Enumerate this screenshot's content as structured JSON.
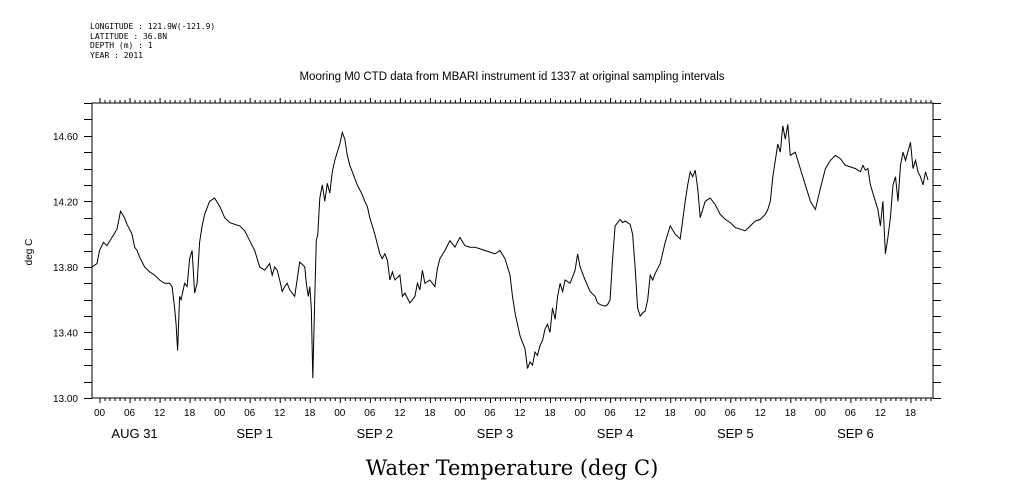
{
  "header": {
    "longitude": "LONGITUDE : 121.9W(-121.9)",
    "latitude": "LATITUDE : 36.8N",
    "depth": "DEPTH (m) : 1",
    "year": "YEAR : 2011"
  },
  "chart_data": {
    "type": "line",
    "title": "Mooring M0 CTD data from MBARI instrument id 1337 at original sampling intervals",
    "xlabel": "Water Temperature (deg C)",
    "ylabel": "deg C",
    "ylim": [
      13.0,
      14.8
    ],
    "yticks": [
      "13.00",
      "13.40",
      "13.80",
      "14.20",
      "14.60"
    ],
    "xlim_hours": [
      -1.5,
      166.5
    ],
    "hour_ticks": [
      "00",
      "06",
      "12",
      "18",
      "00",
      "06",
      "12",
      "18",
      "00",
      "06",
      "12",
      "18",
      "00",
      "06",
      "12",
      "18",
      "00",
      "06",
      "12",
      "18",
      "00",
      "06",
      "12",
      "18",
      "00",
      "06",
      "12",
      "18"
    ],
    "day_labels": [
      "AUG 31",
      "SEP  1",
      "SEP  2",
      "SEP  3",
      "SEP  4",
      "SEP  5",
      "SEP  6"
    ],
    "grid": false,
    "series": [
      {
        "x_hours": [
          -1.5,
          -0.5,
          0,
          0.8,
          1.5,
          2.5,
          3.5,
          4.2,
          5,
          5.5,
          6,
          6.5,
          7,
          7.5,
          8,
          9,
          10,
          11,
          12,
          13,
          14,
          14.5,
          15,
          15.3,
          15.6,
          16,
          16.3,
          17,
          17.5,
          18,
          18.5,
          19,
          19.5,
          20,
          20.5,
          21,
          22,
          23,
          24,
          25,
          26,
          27,
          28,
          29,
          30,
          31,
          32,
          33,
          34,
          34.5,
          35,
          35.5,
          36,
          36.5,
          37,
          37.5,
          38,
          39,
          40,
          41,
          41.3,
          41.7,
          42,
          42.3,
          42.6,
          43,
          43.3,
          43.6,
          44,
          44.5,
          45,
          45.5,
          46,
          46.5,
          47,
          47.5,
          48,
          48.5,
          49,
          49.5,
          50,
          50.5,
          51,
          51.5,
          52,
          52.5,
          53,
          53.5,
          54,
          55,
          56,
          56.5,
          57,
          57.5,
          58,
          58.5,
          59,
          60,
          60.5,
          61,
          62,
          63,
          63.5,
          64,
          64.5,
          65,
          66,
          67,
          67.5,
          68,
          69,
          70,
          71,
          72,
          73,
          74,
          75,
          76,
          77,
          78,
          79,
          80,
          81,
          82,
          82.5,
          83,
          84,
          85,
          85.5,
          86,
          86.5,
          87,
          87.5,
          88,
          88.5,
          89,
          89.5,
          90,
          90.5,
          91,
          91.5,
          92,
          92.5,
          93,
          94,
          95,
          95.5,
          96,
          96.5,
          97,
          98,
          99,
          99.5,
          100,
          101,
          101.5,
          102,
          102.5,
          103,
          104,
          104.5,
          105,
          106,
          106.5,
          107,
          107.5,
          108,
          108.5,
          109,
          109.5,
          110,
          110.5,
          111,
          112,
          113,
          114,
          115,
          116,
          117,
          117.5,
          118,
          118.5,
          119,
          119.5,
          120,
          121,
          122,
          123,
          124,
          125,
          126,
          127,
          128,
          129,
          130,
          131,
          132,
          133,
          133.5,
          134,
          134.5,
          135,
          135.5,
          136,
          136.5,
          137,
          137.5,
          138,
          139,
          140,
          141,
          142,
          143,
          144,
          145,
          146,
          147,
          148,
          149,
          150,
          151,
          152,
          152.5,
          153,
          153.5,
          154,
          154.5,
          155,
          155.5,
          156,
          156.5,
          157,
          157.5,
          158,
          158.5,
          159,
          159.5,
          160,
          160.5,
          161,
          162,
          162.5,
          163,
          163.5,
          164,
          164.5,
          165,
          165.5
        ],
        "y": [
          13.8,
          13.82,
          13.9,
          13.95,
          13.93,
          13.98,
          14.03,
          14.14,
          14.1,
          14.06,
          14.03,
          14.0,
          13.92,
          13.9,
          13.86,
          13.8,
          13.77,
          13.75,
          13.72,
          13.7,
          13.7,
          13.68,
          13.55,
          13.45,
          13.29,
          13.62,
          13.6,
          13.7,
          13.68,
          13.85,
          13.9,
          13.64,
          13.7,
          13.95,
          14.05,
          14.12,
          14.2,
          14.22,
          14.17,
          14.1,
          14.07,
          14.06,
          14.05,
          14.02,
          13.96,
          13.9,
          13.8,
          13.78,
          13.82,
          13.75,
          13.8,
          13.78,
          13.72,
          13.65,
          13.68,
          13.7,
          13.66,
          13.62,
          13.83,
          13.8,
          13.7,
          13.62,
          13.68,
          13.55,
          13.12,
          13.62,
          13.96,
          14.0,
          14.22,
          14.3,
          14.2,
          14.31,
          14.25,
          14.38,
          14.45,
          14.5,
          14.55,
          14.62,
          14.58,
          14.48,
          14.42,
          14.38,
          14.34,
          14.3,
          14.27,
          14.24,
          14.2,
          14.17,
          14.1,
          14.0,
          13.88,
          13.85,
          13.88,
          13.84,
          13.72,
          13.77,
          13.72,
          13.75,
          13.62,
          13.64,
          13.58,
          13.62,
          13.7,
          13.66,
          13.78,
          13.7,
          13.72,
          13.68,
          13.79,
          13.85,
          13.9,
          13.96,
          13.92,
          13.98,
          13.93,
          13.92,
          13.92,
          13.91,
          13.9,
          13.89,
          13.88,
          13.9,
          13.85,
          13.75,
          13.62,
          13.52,
          13.38,
          13.3,
          13.18,
          13.22,
          13.2,
          13.28,
          13.26,
          13.32,
          13.35,
          13.42,
          13.45,
          13.4,
          13.55,
          13.48,
          13.62,
          13.7,
          13.65,
          13.72,
          13.7,
          13.78,
          13.88,
          13.8,
          13.76,
          13.72,
          13.65,
          13.62,
          13.58,
          13.57,
          13.56,
          13.57,
          13.6,
          13.85,
          14.05,
          14.09,
          14.07,
          14.08,
          14.06,
          14.0,
          13.8,
          13.55,
          13.5,
          13.52,
          13.53,
          13.6,
          13.75,
          13.72,
          13.76,
          13.82,
          13.95,
          14.05,
          14.0,
          13.97,
          14.2,
          14.3,
          14.38,
          14.35,
          14.39,
          14.28,
          14.1,
          14.2,
          14.22,
          14.18,
          14.12,
          14.09,
          14.07,
          14.04,
          14.03,
          14.02,
          14.05,
          14.08,
          14.09,
          14.12,
          14.15,
          14.2,
          14.35,
          14.45,
          14.55,
          14.5,
          14.66,
          14.58,
          14.67,
          14.48,
          14.5,
          14.4,
          14.3,
          14.2,
          14.15,
          14.28,
          14.4,
          14.45,
          14.48,
          14.46,
          14.42,
          14.41,
          14.4,
          14.38,
          14.42,
          14.39,
          14.4,
          14.3,
          14.25,
          14.2,
          14.15,
          14.05,
          14.2,
          13.88,
          13.98,
          14.1,
          14.3,
          14.35,
          14.2,
          14.42,
          14.5,
          14.45,
          14.56,
          14.4,
          14.45,
          14.38,
          14.35,
          14.3,
          14.38,
          14.33
        ]
      }
    ]
  }
}
